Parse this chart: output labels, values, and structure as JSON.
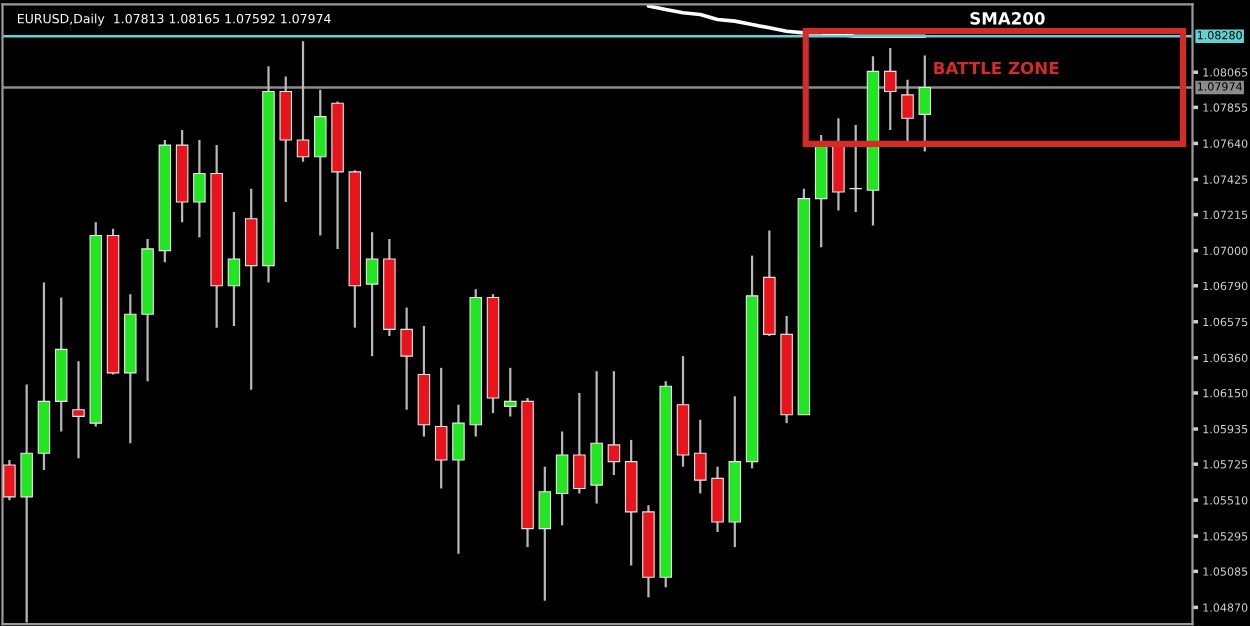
{
  "chart_data": {
    "type": "candlestick",
    "title": "EURUSD,Daily  1.07813 1.08165 1.07592 1.07974",
    "categories": [
      null,
      null,
      null,
      null,
      null,
      null,
      null,
      null,
      null,
      null,
      null,
      null,
      null,
      null,
      null,
      null,
      null,
      null,
      null,
      null,
      null,
      null,
      null,
      null,
      null,
      null,
      null,
      null,
      null,
      null,
      null,
      null,
      null,
      null,
      null,
      null,
      null,
      null,
      null,
      null,
      null,
      null,
      null,
      null,
      null,
      null,
      null,
      null,
      null,
      null,
      null,
      null,
      null,
      null,
      null,
      null,
      null,
      null,
      null,
      null,
      null,
      null,
      null,
      null,
      null,
      null,
      null,
      null,
      null
    ],
    "ohlc": [
      [
        1.0572,
        1.0575,
        1.0551,
        1.0553
      ],
      [
        1.0553,
        1.062,
        1.0478,
        1.0579
      ],
      [
        1.0579,
        1.0681,
        1.0569,
        1.061
      ],
      [
        1.061,
        1.0672,
        1.0592,
        1.0641
      ],
      [
        1.0605,
        1.0634,
        1.0576,
        1.0601
      ],
      [
        1.0597,
        1.0717,
        1.0595,
        1.0709
      ],
      [
        1.0709,
        1.0713,
        1.0626,
        1.0627
      ],
      [
        1.0627,
        1.0674,
        1.0585,
        1.0662
      ],
      [
        1.0662,
        1.0707,
        1.0622,
        1.0701
      ],
      [
        1.07,
        1.0766,
        1.0693,
        1.0763
      ],
      [
        1.0763,
        1.0772,
        1.0717,
        1.0729
      ],
      [
        1.0729,
        1.0766,
        1.0708,
        1.0746
      ],
      [
        1.0746,
        1.0763,
        1.0654,
        1.0679
      ],
      [
        1.0679,
        1.0723,
        1.0655,
        1.0695
      ],
      [
        1.0719,
        1.0737,
        1.0617,
        1.0691
      ],
      [
        1.0691,
        1.081,
        1.0681,
        1.0795
      ],
      [
        1.0795,
        1.0804,
        1.0729,
        1.0766
      ],
      [
        1.0766,
        1.0825,
        1.0753,
        1.0756
      ],
      [
        1.0756,
        1.0796,
        1.0709,
        1.078
      ],
      [
        1.0788,
        1.0789,
        1.0701,
        1.0747
      ],
      [
        1.0747,
        1.0748,
        1.0654,
        1.0679
      ],
      [
        1.068,
        1.0711,
        1.0637,
        1.0695
      ],
      [
        1.0695,
        1.0707,
        1.0649,
        1.0653
      ],
      [
        1.0653,
        1.0666,
        1.0605,
        1.0637
      ],
      [
        1.0626,
        1.0655,
        1.0589,
        1.0596
      ],
      [
        1.0595,
        1.063,
        1.0558,
        1.0575
      ],
      [
        1.0575,
        1.0608,
        1.0519,
        1.0597
      ],
      [
        1.0596,
        1.0677,
        1.0589,
        1.0672
      ],
      [
        1.0672,
        1.0674,
        1.0603,
        1.0612
      ],
      [
        1.0607,
        1.063,
        1.0601,
        1.061
      ],
      [
        1.061,
        1.0612,
        1.0523,
        1.0534
      ],
      [
        1.0534,
        1.0571,
        1.0491,
        1.0556
      ],
      [
        1.0555,
        1.0592,
        1.0536,
        1.0578
      ],
      [
        1.0578,
        1.0615,
        1.0555,
        1.0558
      ],
      [
        1.056,
        1.0628,
        1.0549,
        1.0585
      ],
      [
        1.0584,
        1.0628,
        1.0566,
        1.0574
      ],
      [
        1.0574,
        1.0587,
        1.0512,
        1.0544
      ],
      [
        1.0544,
        1.0548,
        1.0493,
        1.0505
      ],
      [
        1.0505,
        1.0622,
        1.0499,
        1.0619
      ],
      [
        1.0608,
        1.0637,
        1.0571,
        1.0578
      ],
      [
        1.0579,
        1.0599,
        1.0555,
        1.0563
      ],
      [
        1.0564,
        1.0571,
        1.0532,
        1.0538
      ],
      [
        1.0538,
        1.0613,
        1.0523,
        1.0574
      ],
      [
        1.0574,
        1.0697,
        1.057,
        1.0673
      ],
      [
        1.0684,
        1.0712,
        1.0649,
        1.065
      ],
      [
        1.065,
        1.0661,
        1.0597,
        1.0602
      ],
      [
        1.0602,
        1.0737,
        1.0602,
        1.0731
      ],
      [
        1.0731,
        1.0769,
        1.0702,
        1.0765
      ],
      [
        1.0765,
        1.0779,
        1.0724,
        1.0735
      ],
      [
        1.0737,
        1.0775,
        1.0723,
        1.0737
      ],
      [
        1.0736,
        1.0816,
        1.0715,
        1.0807
      ],
      [
        1.0807,
        1.0821,
        1.0772,
        1.0795
      ],
      [
        1.0793,
        1.0802,
        1.0765,
        1.0779
      ],
      [
        1.07813,
        1.08165,
        1.07592,
        1.07974
      ],
      null,
      null,
      null,
      null,
      null,
      null,
      null,
      null,
      null,
      null,
      null,
      null,
      null,
      null,
      null
    ],
    "colors": [
      "#e8141c",
      "#22e622",
      "#22e622",
      "#22e622",
      "#e8141c",
      "#22e622",
      "#e8141c",
      "#22e622",
      "#22e622",
      "#22e622",
      "#e8141c",
      "#22e622",
      "#e8141c",
      "#22e622",
      "#e8141c",
      "#22e622",
      "#e8141c",
      "#e8141c",
      "#22e622",
      "#e8141c",
      "#e8141c",
      "#22e622",
      "#e8141c",
      "#e8141c",
      "#e8141c",
      "#e8141c",
      "#22e622",
      "#22e622",
      "#e8141c",
      "#22e622",
      "#e8141c",
      "#22e622",
      "#22e622",
      "#e8141c",
      "#22e622",
      "#e8141c",
      "#e8141c",
      "#e8141c",
      "#22e622",
      "#e8141c",
      "#e8141c",
      "#e8141c",
      "#22e622",
      "#22e622",
      "#e8141c",
      "#e8141c",
      "#22e622",
      "#22e622",
      "#e8141c",
      "#d0d0d0",
      "#22e622",
      "#e8141c",
      "#e8141c",
      "#22e622",
      null,
      null,
      null,
      null,
      null,
      null,
      null,
      null,
      null,
      null,
      null,
      null,
      null,
      null,
      null
    ],
    "series": [
      {
        "name": "SMA200",
        "type": "line",
        "color": "#ffffff",
        "values": [
          null,
          null,
          null,
          null,
          null,
          null,
          null,
          null,
          null,
          null,
          null,
          null,
          null,
          null,
          null,
          null,
          null,
          null,
          null,
          null,
          null,
          null,
          null,
          null,
          null,
          null,
          null,
          null,
          null,
          null,
          null,
          null,
          null,
          null,
          null,
          null,
          null,
          1.0846,
          1.0844,
          1.0842,
          1.0841,
          1.0838,
          1.0837,
          1.0835,
          1.0833,
          1.0831,
          1.083,
          1.083,
          1.0829,
          1.0828,
          1.0828,
          1.0828,
          1.0828,
          1.0828,
          null,
          null,
          null,
          null,
          null,
          null,
          null,
          null,
          null,
          null,
          null,
          null,
          null,
          null,
          null
        ]
      }
    ],
    "ylim": [
      1.0477,
      1.0847
    ],
    "yticks": [
      {
        "value": 1.08065,
        "label": "1.08065"
      },
      {
        "value": 1.07855,
        "label": "1.07855"
      },
      {
        "value": 1.0764,
        "label": "1.07640"
      },
      {
        "value": 1.07425,
        "label": "1.07425"
      },
      {
        "value": 1.07215,
        "label": "1.07215"
      },
      {
        "value": 1.07,
        "label": "1.07000"
      },
      {
        "value": 1.0679,
        "label": "1.06790"
      },
      {
        "value": 1.06575,
        "label": "1.06575"
      },
      {
        "value": 1.0636,
        "label": "1.06360"
      },
      {
        "value": 1.0615,
        "label": "1.06150"
      },
      {
        "value": 1.05935,
        "label": "1.05935"
      },
      {
        "value": 1.05725,
        "label": "1.05725"
      },
      {
        "value": 1.0551,
        "label": "1.05510"
      },
      {
        "value": 1.05295,
        "label": "1.05295"
      },
      {
        "value": 1.05085,
        "label": "1.05085"
      },
      {
        "value": 1.0487,
        "label": "1.04870"
      }
    ],
    "ref_lines": [
      {
        "axis": "y",
        "value": 1.0828,
        "label": "1.08280",
        "color": "#5fd3d3"
      },
      {
        "axis": "y",
        "value": 1.07974,
        "label": "1.07974",
        "color": "#8c8c8c"
      }
    ],
    "annotations": [
      "BATTLE ZONE"
    ],
    "tick_labels": "y"
  }
}
